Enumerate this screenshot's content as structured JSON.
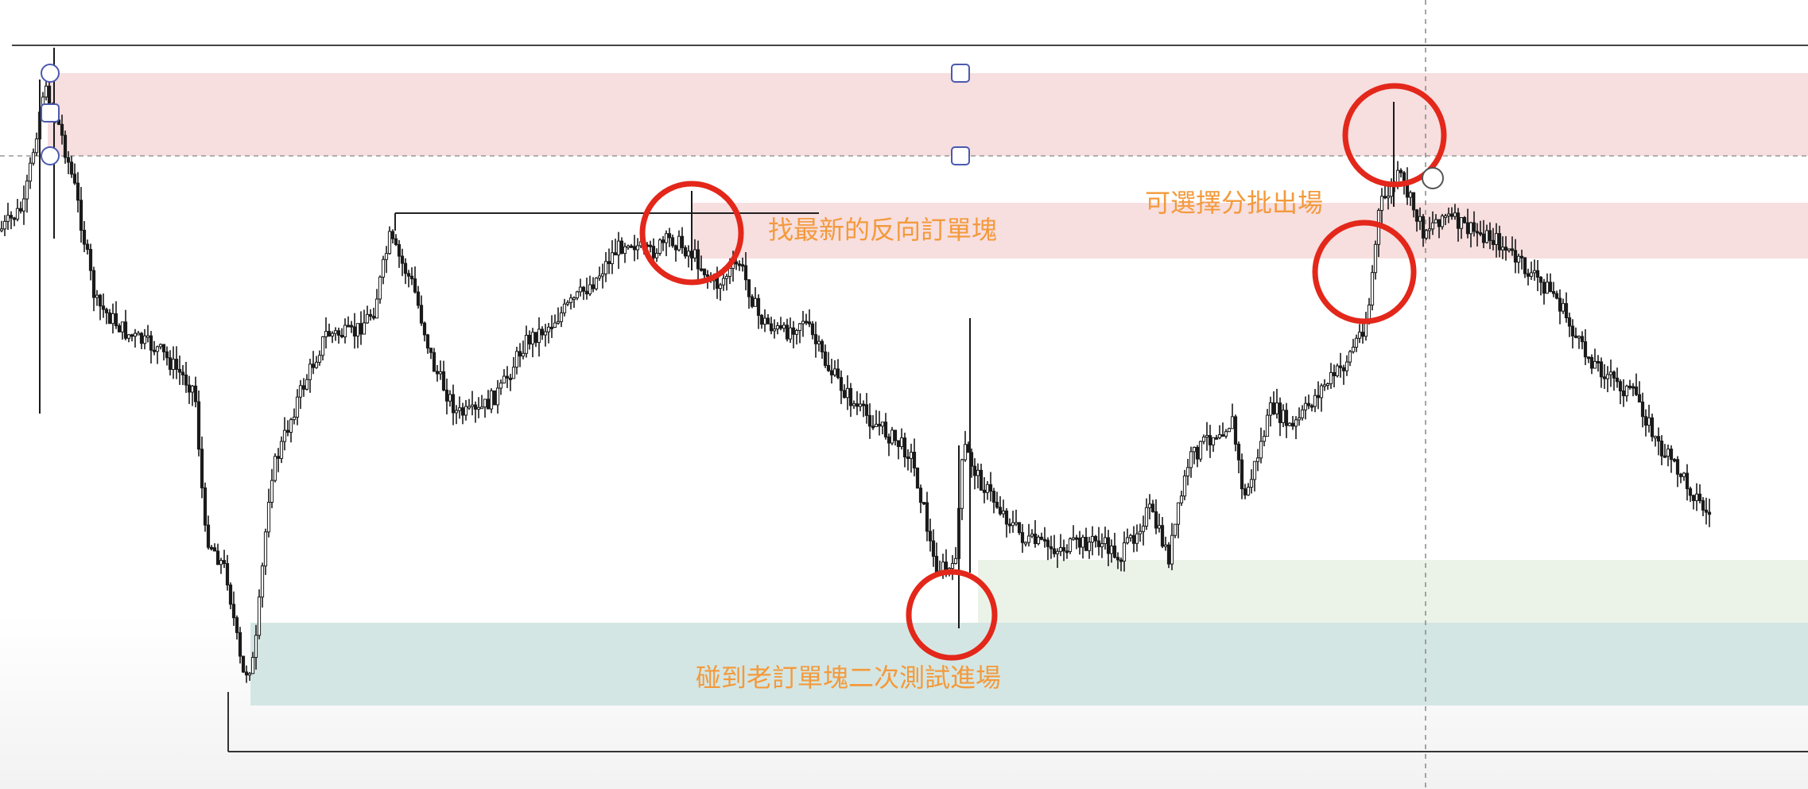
{
  "chart_data": {
    "type": "candlestick",
    "title": "",
    "xlabel": "",
    "ylabel": "",
    "grid": false,
    "colors": {
      "candle": "#1a1a1a",
      "supply_zone": "#f6d8d9",
      "demand_zone": "#cfe3e0",
      "demand_zone_light": "#e9f2e5",
      "marker": "#e3271a",
      "annotation_text": "#f39a3c",
      "handle": "#4a5ab0"
    },
    "annotations": [
      {
        "id": "newest-reverse-ob",
        "text": "找最新的反向訂單塊"
      },
      {
        "id": "partial-exit",
        "text": "可選擇分批出場"
      },
      {
        "id": "retest-entry",
        "text": "碰到老訂單塊二次測試進場"
      }
    ],
    "zones": [
      {
        "id": "supply-top",
        "kind": "supply"
      },
      {
        "id": "supply-mid",
        "kind": "supply"
      },
      {
        "id": "demand-main",
        "kind": "demand"
      },
      {
        "id": "demand-upper",
        "kind": "demand"
      }
    ],
    "markers": [
      {
        "id": "circle-reverse-ob",
        "shape": "circle"
      },
      {
        "id": "circle-retest",
        "shape": "circle"
      },
      {
        "id": "circle-exit-1",
        "shape": "circle"
      },
      {
        "id": "circle-exit-2",
        "shape": "circle"
      }
    ]
  }
}
